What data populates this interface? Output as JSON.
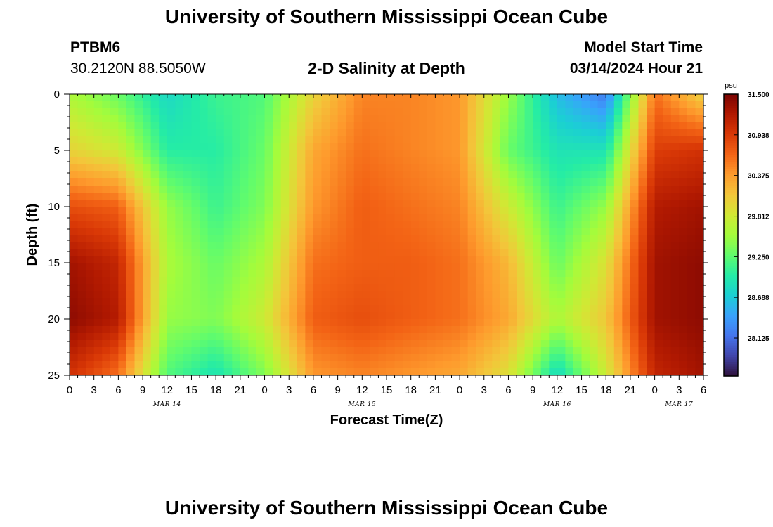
{
  "header": {
    "title": "University of Southern Mississippi Ocean Cube",
    "station_id": "PTBM6",
    "station_coords": "30.2120N  88.5050W",
    "subtitle": "2-D Salinity at Depth",
    "model_start_label": "Model Start Time",
    "model_start_value": "03/14/2024 Hour 21"
  },
  "footer": {
    "title": "University of Southern Mississippi Ocean Cube"
  },
  "chart_data": {
    "type": "heatmap",
    "title": "2-D Salinity at Depth",
    "xlabel": "Forecast Time(Z)",
    "ylabel": "Depth (ft)",
    "x_tick_labels": [
      "0",
      "3",
      "6",
      "9",
      "12",
      "15",
      "18",
      "21",
      "0",
      "3",
      "6",
      "9",
      "12",
      "15",
      "18",
      "21",
      "0",
      "3",
      "6",
      "9",
      "12",
      "15",
      "18",
      "21",
      "0",
      "3",
      "6"
    ],
    "date_labels": [
      {
        "label": "MAR 14",
        "at_hour": 12
      },
      {
        "label": "MAR 15",
        "at_hour": 36
      },
      {
        "label": "MAR 16",
        "at_hour": 60
      },
      {
        "label": "MAR 17",
        "at_hour": 75
      }
    ],
    "x_range_hours": [
      0,
      78
    ],
    "y_ticks": [
      0,
      5,
      10,
      15,
      20,
      25
    ],
    "ylim": [
      0,
      25
    ],
    "y_inverted": true,
    "colorbar": {
      "unit": "psu",
      "min": 27.6,
      "max": 31.5,
      "tick_labels": [
        "31.500",
        "30.938",
        "30.375",
        "29.812",
        "29.250",
        "28.688",
        "28.125"
      ],
      "colors": [
        "#30123b",
        "#4145ab",
        "#4675ed",
        "#39a2fc",
        "#1bcfd4",
        "#24eca6",
        "#61fc6c",
        "#a4fc3b",
        "#d1e834",
        "#f3c63a",
        "#fe9b2d",
        "#f36315",
        "#d93806",
        "#b11901",
        "#7a0402"
      ]
    },
    "series": [
      {
        "name": "",
        "depth_ft": 0,
        "hours": [
          0,
          6,
          12,
          18,
          24,
          30,
          36,
          42,
          48,
          54,
          60,
          66,
          72,
          78
        ],
        "salinity": [
          29.6,
          29.3,
          28.8,
          29.1,
          29.2,
          30.0,
          30.5,
          30.5,
          30.4,
          29.5,
          28.6,
          28.2,
          30.6,
          30.0
        ]
      },
      {
        "name": "",
        "depth_ft": 5,
        "hours": [
          0,
          6,
          12,
          18,
          24,
          30,
          36,
          42,
          48,
          54,
          60,
          66,
          72,
          78
        ],
        "salinity": [
          30.0,
          29.8,
          29.0,
          29.0,
          29.3,
          30.3,
          30.6,
          30.5,
          30.4,
          29.3,
          28.9,
          28.9,
          30.9,
          31.0
        ]
      },
      {
        "name": "",
        "depth_ft": 10,
        "hours": [
          0,
          6,
          12,
          18,
          24,
          30,
          36,
          42,
          48,
          54,
          60,
          66,
          72,
          78
        ],
        "salinity": [
          30.8,
          30.7,
          29.5,
          29.1,
          29.4,
          30.4,
          30.7,
          30.6,
          30.5,
          29.8,
          29.1,
          29.5,
          31.2,
          31.3
        ]
      },
      {
        "name": "",
        "depth_ft": 15,
        "hours": [
          0,
          6,
          12,
          18,
          24,
          30,
          36,
          42,
          48,
          54,
          60,
          66,
          72,
          78
        ],
        "salinity": [
          31.3,
          31.1,
          29.6,
          29.3,
          29.6,
          30.6,
          30.7,
          30.7,
          30.6,
          30.2,
          29.3,
          29.9,
          31.3,
          31.4
        ]
      },
      {
        "name": "",
        "depth_ft": 20,
        "hours": [
          0,
          6,
          12,
          18,
          24,
          30,
          36,
          42,
          48,
          54,
          60,
          66,
          72,
          78
        ],
        "salinity": [
          31.4,
          31.2,
          29.5,
          29.4,
          29.8,
          30.7,
          30.8,
          30.7,
          30.6,
          30.3,
          29.6,
          30.1,
          31.3,
          31.4
        ]
      },
      {
        "name": "",
        "depth_ft": 25,
        "hours": [
          0,
          6,
          12,
          18,
          24,
          30,
          36,
          42,
          48,
          54,
          60,
          66,
          72,
          78
        ],
        "salinity": [
          31.0,
          30.6,
          29.2,
          28.9,
          29.4,
          30.4,
          30.5,
          30.4,
          30.3,
          29.9,
          28.8,
          29.8,
          31.1,
          31.3
        ]
      }
    ]
  }
}
